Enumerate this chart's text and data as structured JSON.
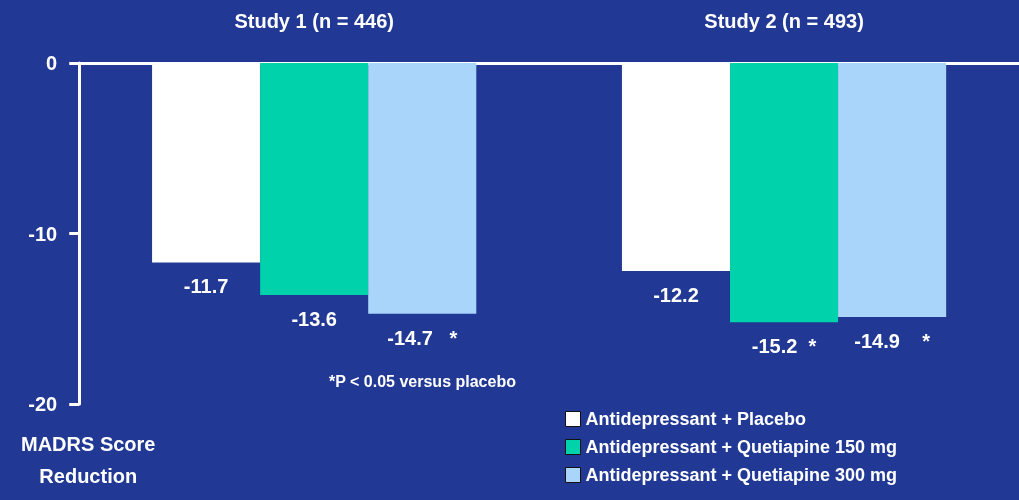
{
  "chart_data": {
    "type": "bar",
    "categories": [
      "Study 1 (n = 446)",
      "Study 2 (n = 493)"
    ],
    "series": [
      {
        "name": "Antidepressant + Placebo",
        "color": "#ffffff",
        "values": [
          -11.7,
          -12.2
        ],
        "value_labels": [
          "-11.7",
          "-12.2"
        ]
      },
      {
        "name": "Antidepressant + Quetiapine 150 mg",
        "color": "#00d2ab",
        "values": [
          -13.6,
          -15.2
        ],
        "value_labels": [
          "-13.6",
          "-15.2  *"
        ]
      },
      {
        "name": "Antidepressant + Quetiapine 300 mg",
        "color": "#a9d5fb",
        "values": [
          -14.7,
          -14.9
        ],
        "value_labels": [
          "-14.7   *",
          "-14.9    *"
        ]
      }
    ],
    "ylabel": "MADRS Score Reduction",
    "ylim": [
      -20,
      0
    ],
    "yticks": [
      -20,
      -10,
      0
    ],
    "annotations": [
      "*P < 0.05 versus placebo"
    ],
    "legend": "bottom right"
  }
}
